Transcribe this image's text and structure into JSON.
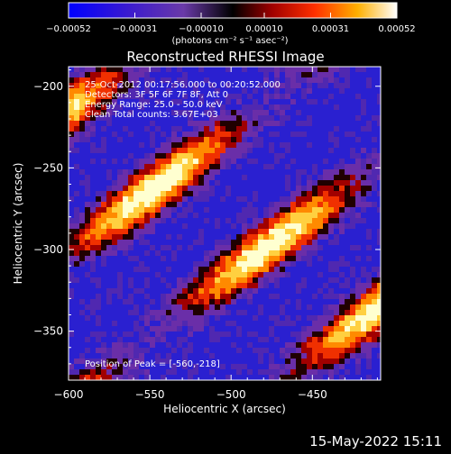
{
  "chart_data": {
    "type": "heatmap",
    "title": "Reconstructed RHESSI Image",
    "xlabel": "Heliocentric X (arcsec)",
    "ylabel": "Heliocentric Y (arcsec)",
    "xlim": [
      -600,
      -408
    ],
    "ylim": [
      -380,
      -188
    ],
    "xticks": [
      -600,
      -550,
      -500,
      -450
    ],
    "yticks": [
      -200,
      -250,
      -300,
      -350
    ],
    "colorbar": {
      "ticks": [
        "-0.00052",
        "-0.00031",
        "-0.00010",
        "0.00010",
        "0.00031",
        "0.00052"
      ],
      "unit_label": "(photons cm⁻² s⁻¹ asec⁻²)",
      "range": [
        -0.00052,
        0.00052
      ]
    },
    "annotations": {
      "time": "25-Oct-2012 00:17:56.000 to 00:20:52.000",
      "detectors": "Detectors: 3F 5F 6F 7F 8F, Att 0",
      "energy": "Energy Range: 25.0 - 50.0 keV",
      "clean": "Clean     Total counts: 3.67E+03",
      "peak": "Position of Peak = [-560,-218]"
    },
    "footer_date": "15-May-2022 15:11"
  }
}
